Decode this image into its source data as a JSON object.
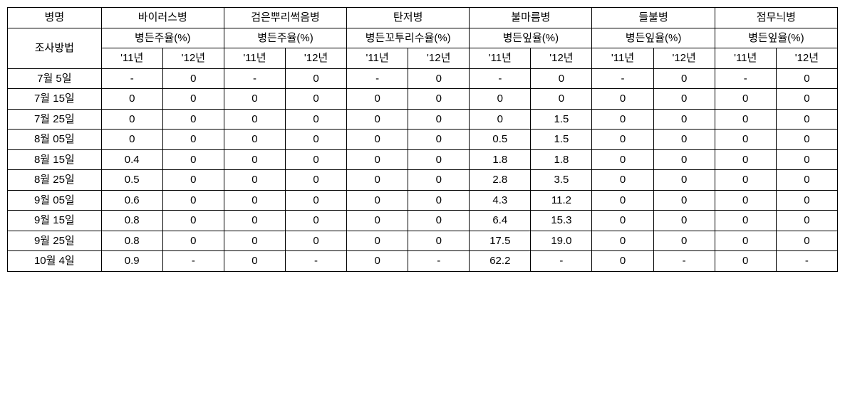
{
  "header1": {
    "disease_label": "병명",
    "diseases": [
      "바이러스병",
      "검은뿌리썩음병",
      "탄저병",
      "불마름병",
      "들불병",
      "점무늬병"
    ]
  },
  "header2": {
    "method_label": "조사방법",
    "metrics": [
      "병든주율(%)",
      "병든주율(%)",
      "병든꼬투리수율(%)",
      "병든잎율(%)",
      "병든잎율(%)",
      "병든잎율(%)"
    ]
  },
  "header3": {
    "years": [
      "'11년",
      "'12년",
      "'11년",
      "'12년",
      "'11년",
      "'12년",
      "'11년",
      "'12년",
      "'11년",
      "'12년",
      "'11년",
      "'12년"
    ]
  },
  "rows": [
    {
      "date": "7월 5일",
      "v": [
        "-",
        "0",
        "-",
        "0",
        "-",
        "0",
        "-",
        "0",
        "-",
        "0",
        "-",
        "0"
      ]
    },
    {
      "date": "7월 15일",
      "v": [
        "0",
        "0",
        "0",
        "0",
        "0",
        "0",
        "0",
        "0",
        "0",
        "0",
        "0",
        "0"
      ]
    },
    {
      "date": "7월 25일",
      "v": [
        "0",
        "0",
        "0",
        "0",
        "0",
        "0",
        "0",
        "1.5",
        "0",
        "0",
        "0",
        "0"
      ]
    },
    {
      "date": "8월 05일",
      "v": [
        "0",
        "0",
        "0",
        "0",
        "0",
        "0",
        "0.5",
        "1.5",
        "0",
        "0",
        "0",
        "0"
      ]
    },
    {
      "date": "8월 15일",
      "v": [
        "0.4",
        "0",
        "0",
        "0",
        "0",
        "0",
        "1.8",
        "1.8",
        "0",
        "0",
        "0",
        "0"
      ]
    },
    {
      "date": "8월 25일",
      "v": [
        "0.5",
        "0",
        "0",
        "0",
        "0",
        "0",
        "2.8",
        "3.5",
        "0",
        "0",
        "0",
        "0"
      ]
    },
    {
      "date": "9월 05일",
      "v": [
        "0.6",
        "0",
        "0",
        "0",
        "0",
        "0",
        "4.3",
        "11.2",
        "0",
        "0",
        "0",
        "0"
      ]
    },
    {
      "date": "9월 15일",
      "v": [
        "0.8",
        "0",
        "0",
        "0",
        "0",
        "0",
        "6.4",
        "15.3",
        "0",
        "0",
        "0",
        "0"
      ]
    },
    {
      "date": "9월 25일",
      "v": [
        "0.8",
        "0",
        "0",
        "0",
        "0",
        "0",
        "17.5",
        "19.0",
        "0",
        "0",
        "0",
        "0"
      ]
    },
    {
      "date": "10월 4일",
      "v": [
        "0.9",
        "-",
        "0",
        "-",
        "0",
        "-",
        "62.2",
        "-",
        "0",
        "-",
        "0",
        "-"
      ]
    }
  ]
}
